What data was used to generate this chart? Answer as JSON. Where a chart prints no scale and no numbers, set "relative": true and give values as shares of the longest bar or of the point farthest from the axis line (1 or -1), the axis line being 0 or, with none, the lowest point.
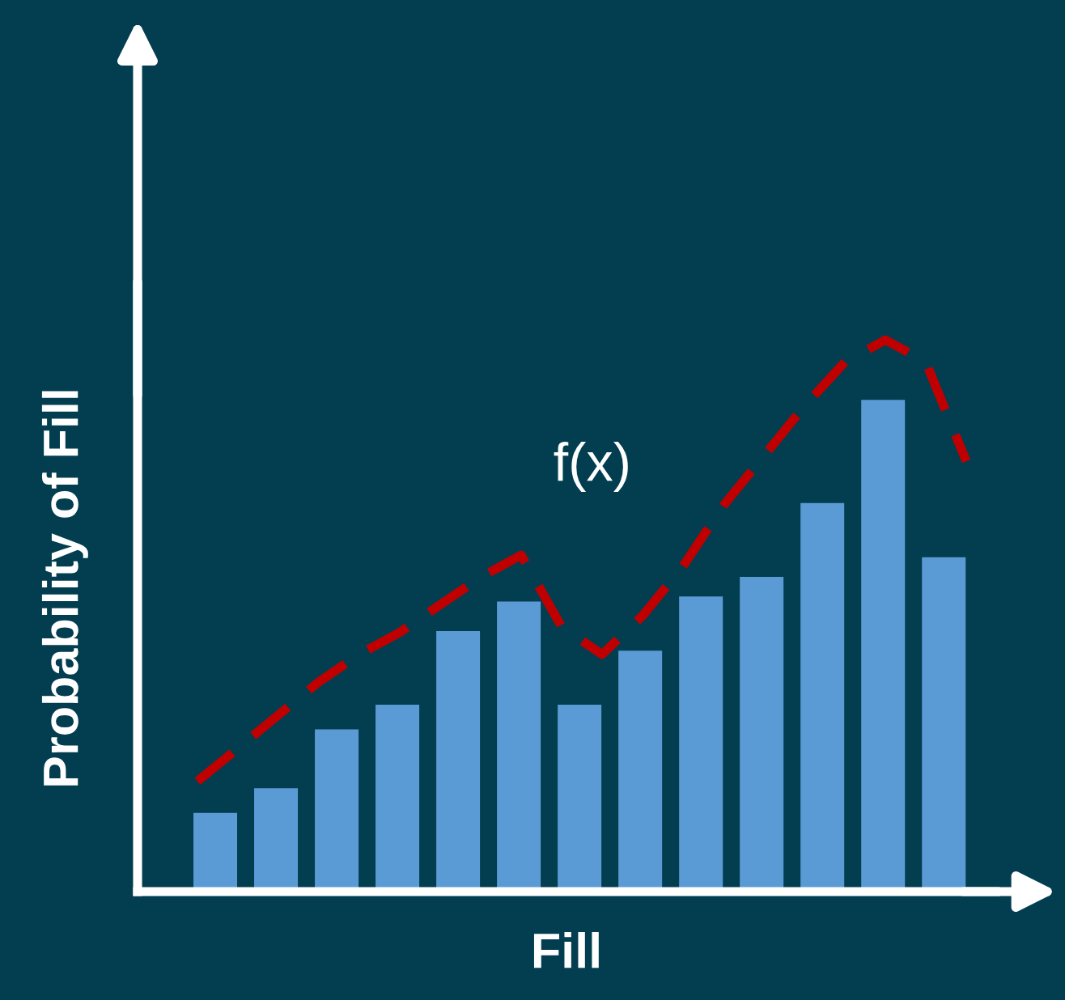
{
  "chart_data": [
    {
      "type": "bar",
      "relative": true,
      "xlabel": "Fill",
      "ylabel": "Probability of Fill",
      "tick_labels": false,
      "categories": [
        null,
        null,
        null,
        null,
        null,
        null,
        null,
        null,
        null,
        null,
        null,
        null,
        null
      ],
      "color": "#5b9bd5",
      "values": [
        0.16,
        0.21,
        0.33,
        0.38,
        0.53,
        0.59,
        0.38,
        0.49,
        0.6,
        0.64,
        0.79,
        1.0,
        0.68
      ]
    },
    {
      "type": "line",
      "relative": true,
      "annotations": [
        "f(x)"
      ],
      "tick_labels": false,
      "line_style": "dashed",
      "categories": [
        null,
        null,
        null,
        null,
        null,
        null,
        null,
        null,
        null,
        null,
        null,
        null,
        null,
        null,
        null,
        null,
        null,
        null,
        null,
        null
      ],
      "color": "#c00000",
      "values": [
        0.2,
        0.26,
        0.32,
        0.38,
        0.43,
        0.47,
        0.52,
        0.57,
        0.61,
        0.48,
        0.43,
        0.5,
        0.59,
        0.7,
        0.79,
        0.88,
        0.96,
        1.0,
        0.96,
        0.78
      ]
    }
  ]
}
